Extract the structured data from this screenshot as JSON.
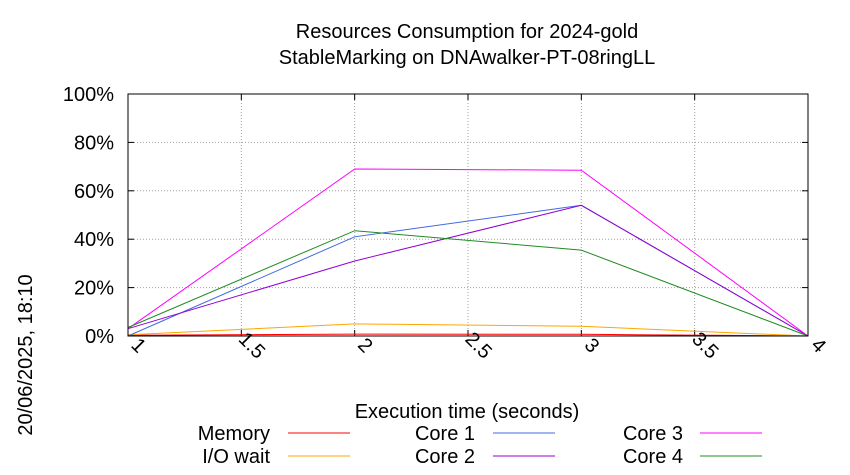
{
  "chart_data": {
    "type": "line",
    "title": "Resources Consumption for 2024-gold",
    "subtitle": "StableMarking on DNAwalker-PT-08ringLL",
    "xlabel": "Execution time (seconds)",
    "ylabel": "",
    "side_label": "20/06/2025, 18:10",
    "xlim": [
      1,
      4
    ],
    "ylim": [
      0,
      100
    ],
    "x_ticks": [
      {
        "value": 1,
        "label": "1"
      },
      {
        "value": 1.5,
        "label": "1.5"
      },
      {
        "value": 2,
        "label": "2"
      },
      {
        "value": 2.5,
        "label": "2.5"
      },
      {
        "value": 3,
        "label": "3"
      },
      {
        "value": 3.5,
        "label": "3.5"
      },
      {
        "value": 4,
        "label": "4"
      }
    ],
    "y_ticks": [
      {
        "value": 0,
        "label": "0%"
      },
      {
        "value": 20,
        "label": "20%"
      },
      {
        "value": 40,
        "label": "40%"
      },
      {
        "value": 60,
        "label": "60%"
      },
      {
        "value": 80,
        "label": "80%"
      },
      {
        "value": 100,
        "label": "100%"
      }
    ],
    "grid": true,
    "legend_position": "bottom",
    "series": [
      {
        "name": "Memory",
        "color": "#ff0000",
        "x": [
          1,
          2,
          3,
          4
        ],
        "y": [
          0.3,
          0.8,
          0.7,
          0
        ]
      },
      {
        "name": "I/O wait",
        "color": "#ffa500",
        "x": [
          1,
          2,
          3,
          4
        ],
        "y": [
          0.5,
          5,
          4,
          0
        ]
      },
      {
        "name": "Core 1",
        "color": "#4169e1",
        "x": [
          1,
          2,
          3,
          4
        ],
        "y": [
          0,
          41,
          54,
          0
        ]
      },
      {
        "name": "Core 2",
        "color": "#9400d3",
        "x": [
          1,
          2,
          3,
          4
        ],
        "y": [
          3,
          31,
          54,
          0
        ]
      },
      {
        "name": "Core 3",
        "color": "#ff00ff",
        "x": [
          1,
          2,
          3,
          4
        ],
        "y": [
          3,
          69,
          68.5,
          0
        ]
      },
      {
        "name": "Core 4",
        "color": "#228b22",
        "x": [
          1,
          2,
          3,
          4
        ],
        "y": [
          3.5,
          43.5,
          35.5,
          0
        ]
      }
    ]
  }
}
